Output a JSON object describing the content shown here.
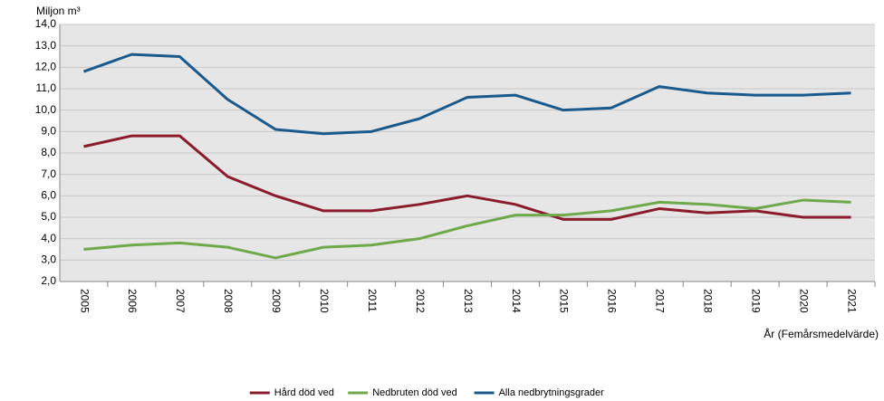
{
  "chart_data": {
    "type": "line",
    "ylabel": "Miljon m³",
    "xlabel": "År (Femårsmedelvärde)",
    "categories": [
      "2005",
      "2006",
      "2007",
      "2008",
      "2009",
      "2010",
      "2011",
      "2012",
      "2013",
      "2014",
      "2015",
      "2016",
      "2017",
      "2018",
      "2019",
      "2020",
      "2021"
    ],
    "series": [
      {
        "name": "Hård död ved",
        "color": "#8b1c2c",
        "values": [
          8.3,
          8.8,
          8.8,
          6.9,
          6.0,
          5.3,
          5.3,
          5.6,
          6.0,
          5.6,
          4.9,
          4.9,
          5.4,
          5.2,
          5.3,
          5.0,
          5.0
        ]
      },
      {
        "name": "Nedbruten död ved",
        "color": "#6ea94a",
        "values": [
          3.5,
          3.7,
          3.8,
          3.6,
          3.1,
          3.6,
          3.7,
          4.0,
          4.6,
          5.1,
          5.1,
          5.3,
          5.7,
          5.6,
          5.4,
          5.8,
          5.7
        ]
      },
      {
        "name": "Alla nedbrytningsgrader",
        "color": "#1b5a8c",
        "values": [
          11.8,
          12.6,
          12.5,
          10.5,
          9.1,
          8.9,
          9.0,
          9.6,
          10.6,
          10.7,
          10.0,
          10.1,
          11.1,
          10.8,
          10.7,
          10.7,
          10.8
        ]
      }
    ],
    "ylim": [
      2,
      14
    ],
    "yticks": [
      {
        "value": 2,
        "label": "2,0"
      },
      {
        "value": 3,
        "label": "3,0"
      },
      {
        "value": 4,
        "label": "4,0"
      },
      {
        "value": 5,
        "label": "5,0"
      },
      {
        "value": 6,
        "label": "6,0"
      },
      {
        "value": 7,
        "label": "7,0"
      },
      {
        "value": 8,
        "label": "8,0"
      },
      {
        "value": 9,
        "label": "9,0"
      },
      {
        "value": 10,
        "label": "10,0"
      },
      {
        "value": 11,
        "label": "11,0"
      },
      {
        "value": 12,
        "label": "12,0"
      },
      {
        "value": 13,
        "label": "13,0"
      },
      {
        "value": 14,
        "label": "14,0"
      }
    ],
    "grid": true
  }
}
